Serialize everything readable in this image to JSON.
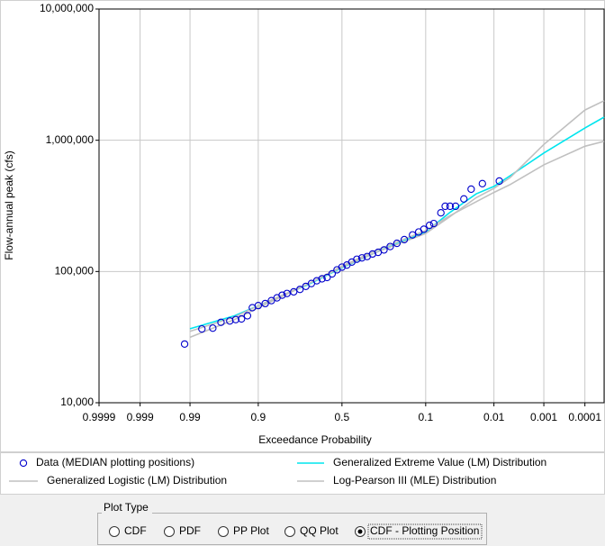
{
  "chart_data": {
    "type": "scatter-line",
    "x_label": "Exceedance Probability",
    "y_label": "Flow-annual peak (cfs)",
    "x_scale": "normal-probability",
    "y_scale": "log",
    "grid": true,
    "xlim": [
      0.9999,
      3e-05
    ],
    "xticks": [
      0.9999,
      0.999,
      0.99,
      0.9,
      0.5,
      0.1,
      0.01,
      0.001,
      0.0001
    ],
    "ylim": [
      10000,
      10000000
    ],
    "yticks": [
      {
        "value": 10000,
        "label": "10,000"
      },
      {
        "value": 100000,
        "label": "100,000"
      },
      {
        "value": 1000000,
        "label": "1,000,000"
      },
      {
        "value": 10000000,
        "label": "10,000,000"
      }
    ],
    "series": [
      {
        "name": "Data (MEDIAN plotting positions)",
        "color": "#0000cc",
        "marker": "circle",
        "x": [
          0.992,
          0.984,
          0.976,
          0.968,
          0.957,
          0.948,
          0.938,
          0.926,
          0.915,
          0.9,
          0.88,
          0.86,
          0.84,
          0.82,
          0.8,
          0.77,
          0.74,
          0.71,
          0.68,
          0.65,
          0.62,
          0.59,
          0.56,
          0.53,
          0.5,
          0.47,
          0.44,
          0.41,
          0.38,
          0.35,
          0.32,
          0.29,
          0.26,
          0.23,
          0.2,
          0.17,
          0.14,
          0.12,
          0.105,
          0.09,
          0.08,
          0.065,
          0.057,
          0.049,
          0.041,
          0.031,
          0.024,
          0.0158,
          0.008
        ],
        "values": [
          28000,
          36500,
          37000,
          41000,
          42000,
          43000,
          43500,
          46000,
          53000,
          55000,
          57000,
          60000,
          63000,
          66000,
          68000,
          70000,
          73000,
          77000,
          81000,
          85000,
          88000,
          90000,
          96000,
          103000,
          108000,
          112000,
          118000,
          124000,
          127000,
          130000,
          136000,
          140000,
          146000,
          155000,
          164000,
          175000,
          190000,
          200000,
          210000,
          225000,
          232000,
          280000,
          314000,
          314000,
          314000,
          357000,
          424000,
          467000,
          489000
        ]
      },
      {
        "name": "Generalized Extreme Value (LM) Distribution",
        "color": "#00e5ee",
        "marker": "line",
        "x": [
          0.99,
          0.95,
          0.9,
          0.7,
          0.5,
          0.3,
          0.1,
          0.05,
          0.02,
          0.01,
          0.005,
          0.001,
          0.0001,
          3e-05
        ],
        "values": [
          36600,
          46000,
          55000,
          79000,
          107000,
          140000,
          200000,
          280000,
          390000,
          445000,
          537000,
          800000,
          1240000,
          1500000
        ]
      },
      {
        "name": "Generalized Logistic (LM) Distribution",
        "color": "#c0c0c0",
        "marker": "line",
        "x": [
          0.99,
          0.95,
          0.9,
          0.7,
          0.5,
          0.3,
          0.1,
          0.05,
          0.02,
          0.01,
          0.005,
          0.001,
          0.0001,
          3e-05
        ],
        "values": [
          35000,
          45000,
          55000,
          80000,
          108000,
          140000,
          195000,
          260000,
          365000,
          430000,
          520000,
          930000,
          1700000,
          2000000
        ]
      },
      {
        "name": "Log-Pearson III (MLE) Distribution",
        "color": "#c0c0c0",
        "marker": "line",
        "x": [
          0.99,
          0.95,
          0.9,
          0.7,
          0.5,
          0.3,
          0.1,
          0.05,
          0.02,
          0.01,
          0.005,
          0.001,
          0.0001,
          3e-05
        ],
        "values": [
          31500,
          43000,
          53000,
          80000,
          110000,
          145000,
          205000,
          265000,
          340000,
          400000,
          460000,
          650000,
          900000,
          980000
        ]
      }
    ]
  },
  "plot_type": {
    "label": "Plot Type",
    "options": [
      "CDF",
      "PDF",
      "PP Plot",
      "QQ Plot",
      "CDF - Plotting Position"
    ],
    "selected": 4
  }
}
